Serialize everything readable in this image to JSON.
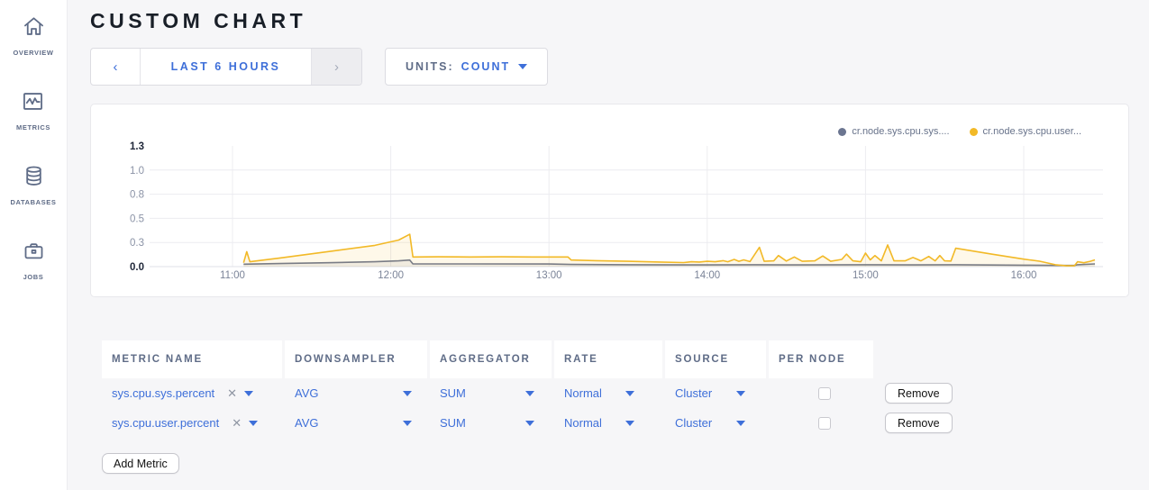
{
  "app": {
    "title": "CUSTOM CHART"
  },
  "sidebar": {
    "items": [
      {
        "label": "OVERVIEW",
        "icon": "home-icon"
      },
      {
        "label": "METRICS",
        "icon": "metrics-icon"
      },
      {
        "label": "DATABASES",
        "icon": "database-icon"
      },
      {
        "label": "JOBS",
        "icon": "briefcase-icon"
      }
    ]
  },
  "controls": {
    "prev_label": "‹",
    "range_label": "LAST 6 HOURS",
    "next_label": "›",
    "units_label": "UNITS:",
    "units_value": "COUNT"
  },
  "chart_data": {
    "type": "line",
    "title": "",
    "xlabel": "",
    "ylabel": "",
    "grid": true,
    "legend_position": "top-right",
    "ylim": [
      0,
      1.25
    ],
    "x_ticks": [
      "11:00",
      "12:00",
      "13:00",
      "14:00",
      "15:00",
      "16:00"
    ],
    "x_tick_hours": [
      11,
      12,
      13,
      14,
      15,
      16
    ],
    "y_ticks": [
      {
        "v": 0,
        "label": "0.0",
        "bold": true,
        "grid": true
      },
      {
        "v": 0.25,
        "label": "0.3",
        "bold": false,
        "grid": true
      },
      {
        "v": 0.5,
        "label": "0.5",
        "bold": false,
        "grid": true
      },
      {
        "v": 0.75,
        "label": "0.8",
        "bold": false,
        "grid": true
      },
      {
        "v": 1.0,
        "label": "1.0",
        "bold": false,
        "grid": true
      },
      {
        "v": 1.25,
        "label": "1.3",
        "bold": true,
        "grid": false
      }
    ],
    "series": [
      {
        "name": "cr.node.sys.cpu.sys....",
        "color": "#6b7590",
        "fill": "rgba(107,117,144,0.10)",
        "points": [
          [
            11.07,
            0.025
          ],
          [
            11.3,
            0.032
          ],
          [
            11.6,
            0.04
          ],
          [
            11.9,
            0.05
          ],
          [
            12.05,
            0.06
          ],
          [
            12.12,
            0.068
          ],
          [
            12.14,
            0.028
          ],
          [
            12.5,
            0.028
          ],
          [
            13.0,
            0.027
          ],
          [
            13.14,
            0.022
          ],
          [
            13.5,
            0.02
          ],
          [
            14.0,
            0.018
          ],
          [
            14.3,
            0.02
          ],
          [
            14.5,
            0.018
          ],
          [
            15.0,
            0.02
          ],
          [
            15.3,
            0.018
          ],
          [
            15.57,
            0.02
          ],
          [
            16.0,
            0.015
          ],
          [
            16.27,
            0.012
          ],
          [
            16.32,
            0.012
          ],
          [
            16.34,
            0.02
          ],
          [
            16.45,
            0.028
          ]
        ]
      },
      {
        "name": "cr.node.sys.cpu.user...",
        "color": "#f2b927",
        "fill": "rgba(242,185,39,0.10)",
        "points": [
          [
            11.07,
            0.04
          ],
          [
            11.09,
            0.155
          ],
          [
            11.11,
            0.05
          ],
          [
            11.3,
            0.09
          ],
          [
            11.6,
            0.155
          ],
          [
            11.9,
            0.22
          ],
          [
            12.05,
            0.275
          ],
          [
            12.12,
            0.335
          ],
          [
            12.14,
            0.1
          ],
          [
            12.3,
            0.102
          ],
          [
            12.5,
            0.1
          ],
          [
            12.7,
            0.102
          ],
          [
            12.9,
            0.1
          ],
          [
            13.05,
            0.1
          ],
          [
            13.12,
            0.1
          ],
          [
            13.14,
            0.068
          ],
          [
            13.3,
            0.062
          ],
          [
            13.5,
            0.055
          ],
          [
            13.7,
            0.048
          ],
          [
            13.85,
            0.042
          ],
          [
            13.9,
            0.05
          ],
          [
            13.95,
            0.048
          ],
          [
            14.0,
            0.055
          ],
          [
            14.05,
            0.05
          ],
          [
            14.1,
            0.062
          ],
          [
            14.13,
            0.05
          ],
          [
            14.17,
            0.075
          ],
          [
            14.2,
            0.055
          ],
          [
            14.23,
            0.07
          ],
          [
            14.27,
            0.052
          ],
          [
            14.33,
            0.2
          ],
          [
            14.36,
            0.055
          ],
          [
            14.42,
            0.06
          ],
          [
            14.45,
            0.115
          ],
          [
            14.5,
            0.058
          ],
          [
            14.55,
            0.1
          ],
          [
            14.6,
            0.055
          ],
          [
            14.68,
            0.06
          ],
          [
            14.73,
            0.11
          ],
          [
            14.78,
            0.055
          ],
          [
            14.85,
            0.075
          ],
          [
            14.88,
            0.13
          ],
          [
            14.92,
            0.06
          ],
          [
            14.97,
            0.05
          ],
          [
            15.0,
            0.14
          ],
          [
            15.03,
            0.07
          ],
          [
            15.06,
            0.115
          ],
          [
            15.1,
            0.06
          ],
          [
            15.14,
            0.225
          ],
          [
            15.18,
            0.06
          ],
          [
            15.25,
            0.06
          ],
          [
            15.3,
            0.095
          ],
          [
            15.35,
            0.06
          ],
          [
            15.4,
            0.105
          ],
          [
            15.44,
            0.06
          ],
          [
            15.47,
            0.115
          ],
          [
            15.5,
            0.06
          ],
          [
            15.54,
            0.058
          ],
          [
            15.57,
            0.19
          ],
          [
            15.8,
            0.129
          ],
          [
            16.0,
            0.077
          ],
          [
            16.1,
            0.056
          ],
          [
            16.2,
            0.02
          ],
          [
            16.27,
            0.008
          ],
          [
            16.32,
            0.008
          ],
          [
            16.34,
            0.05
          ],
          [
            16.38,
            0.04
          ],
          [
            16.42,
            0.055
          ],
          [
            16.45,
            0.07
          ]
        ]
      }
    ]
  },
  "table": {
    "headers": [
      "METRIC NAME",
      "DOWNSAMPLER",
      "AGGREGATOR",
      "RATE",
      "SOURCE",
      "PER NODE"
    ],
    "rows": [
      {
        "metric": "sys.cpu.sys.percent",
        "downsampler": "AVG",
        "aggregator": "SUM",
        "rate": "Normal",
        "source": "Cluster",
        "per_node": false,
        "remove_label": "Remove"
      },
      {
        "metric": "sys.cpu.user.percent",
        "downsampler": "AVG",
        "aggregator": "SUM",
        "rate": "Normal",
        "source": "Cluster",
        "per_node": false,
        "remove_label": "Remove"
      }
    ],
    "clear_symbol": "✕",
    "add_label": "Add Metric"
  },
  "colors": {
    "accent_blue": "#3e6fd9",
    "slate": "#5f6c87",
    "series_yellow": "#f2b927",
    "series_gray": "#6b7590",
    "page_bg": "#f6f6f8"
  }
}
